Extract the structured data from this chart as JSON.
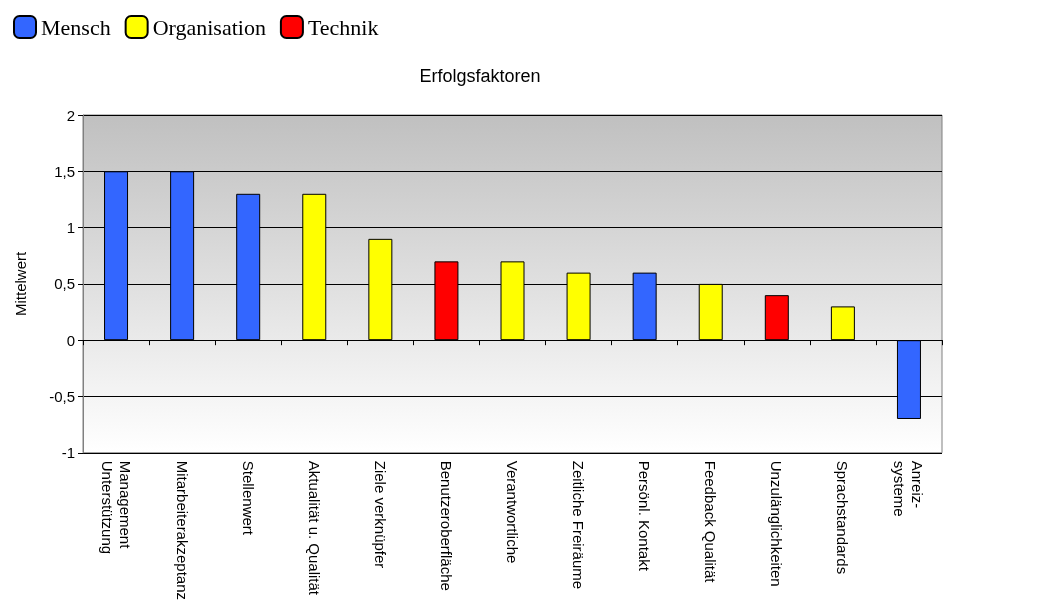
{
  "chart_data": {
    "type": "bar",
    "title": "Erfolgsfaktoren",
    "ylabel": "Mittelwert",
    "categories": [
      "Management\nUnterstützung",
      "Mitarbeiterakzeptanz",
      "Stellenwert",
      "Aktualität u. Qualität",
      "Ziele verknüpfer",
      "Benutzeroberfläche",
      "Verantwortliche",
      "Zeitliche Freiräume",
      "Persönl. Kontakt",
      "Feedback Qualität",
      "Unzulänglichkeiten",
      "Sprachstandards",
      "Anreiz-\nsysteme"
    ],
    "series": [
      {
        "name": "Mensch",
        "color": "#3366ff",
        "values": [
          1.5,
          1.5,
          1.3,
          null,
          null,
          null,
          null,
          null,
          0.6,
          null,
          null,
          null,
          -0.7
        ]
      },
      {
        "name": "Organisation",
        "color": "#ffff00",
        "values": [
          null,
          null,
          null,
          1.3,
          0.9,
          null,
          0.7,
          0.6,
          null,
          0.5,
          null,
          0.3,
          null
        ]
      },
      {
        "name": "Technik",
        "color": "#ff0000",
        "values": [
          null,
          null,
          null,
          null,
          null,
          0.7,
          null,
          null,
          null,
          null,
          0.4,
          null,
          null
        ]
      }
    ],
    "stacked": true,
    "ylim": [
      -1,
      2
    ],
    "yticks": [
      -1,
      {
        "value": -0.5,
        "label": "-0,5"
      },
      0,
      {
        "value": 0.5,
        "label": "0,5"
      },
      1,
      {
        "value": 1.5,
        "label": "1,5"
      },
      2
    ],
    "grid": "y",
    "legend": "top left"
  }
}
